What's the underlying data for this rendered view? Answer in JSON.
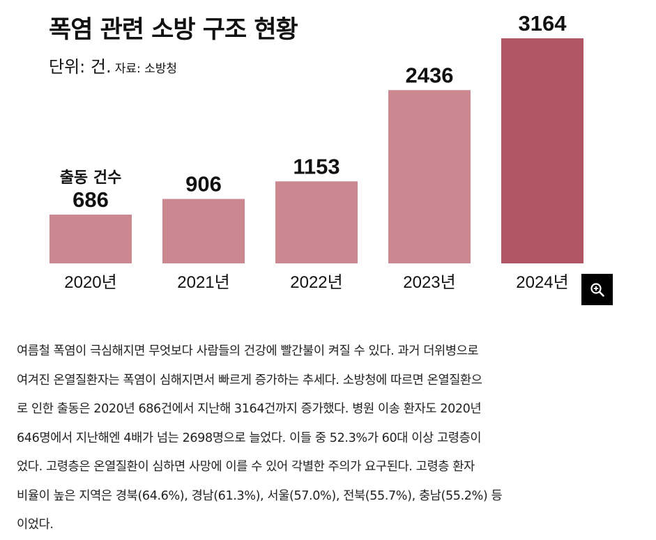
{
  "chart_data": {
    "type": "bar",
    "title": "폭염 관련 소방 구조 현황",
    "unit_label": "단위: 건.",
    "source_label": "자료: 소방청",
    "series_name": "출동 건수",
    "categories": [
      "2020년",
      "2021년",
      "2022년",
      "2023년",
      "2024년"
    ],
    "values": [
      686,
      906,
      1153,
      2436,
      3164
    ],
    "value_labels": [
      "686",
      "906",
      "1153",
      "2436",
      "3164"
    ],
    "ylim": [
      0,
      3164
    ],
    "grid": false,
    "colors": {
      "bar": "#cc8890",
      "highlight": "#b05563"
    }
  },
  "toolbar": {
    "zoom_icon": "zoom-in-icon"
  },
  "article": {
    "lines": [
      "여름철 폭염이 극심해지면 무엇보다 사람들의 건강에 빨간불이 켜질 수 있다. 과거 더위병으로",
      "여겨진 온열질환자는 폭염이 심해지면서 빠르게 증가하는 추세다. 소방청에 따르면 온열질환으",
      "로 인한 출동은 2020년 686건에서 지난해 3164건까지 증가했다. 병원 이송 환자도 2020년",
      "646명에서 지난해엔 4배가 넘는 2698명으로 늘었다. 이들 중 52.3%가 60대 이상 고령층이",
      "었다. 고령층은 온열질환이 심하면 사망에 이를 수 있어 각별한 주의가 요구된다. 고령층 환자",
      "비율이 높은 지역은 경북(64.6%), 경남(61.3%), 서울(57.0%), 전북(55.7%), 충남(55.2%) 등",
      "이었다."
    ]
  }
}
